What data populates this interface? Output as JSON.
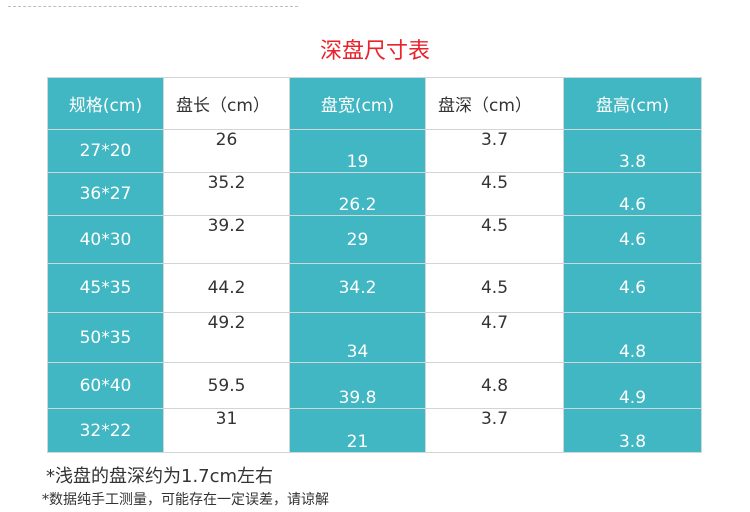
{
  "title": "深盘尺寸表",
  "colors": {
    "accent_red": "#e8232c",
    "teal": "#40b7c2",
    "border": "#cfd6d8"
  },
  "table": {
    "headers": [
      "规格(cm)",
      "盘长（cm）",
      "盘宽(cm)",
      "盘深（cm）",
      "盘高(cm)"
    ],
    "rows": [
      [
        "27*20",
        "26",
        "19",
        "3.7",
        "3.8"
      ],
      [
        "36*27",
        "35.2",
        "26.2",
        "4.5",
        "4.6"
      ],
      [
        "40*30",
        "39.2",
        "29",
        "4.5",
        "4.6"
      ],
      [
        "45*35",
        "44.2",
        "34.2",
        "4.5",
        "4.6"
      ],
      [
        "50*35",
        "49.2",
        "34",
        "4.7",
        "4.8"
      ],
      [
        "60*40",
        "59.5",
        "39.8",
        "4.8",
        "4.9"
      ],
      [
        "32*22",
        "31",
        "21",
        "3.7",
        "3.8"
      ]
    ]
  },
  "notes": {
    "shallow": "*浅盘的盘深约为1.7cm左右",
    "disclaimer": "*数据纯手工测量，可能存在一定误差，请谅解"
  }
}
